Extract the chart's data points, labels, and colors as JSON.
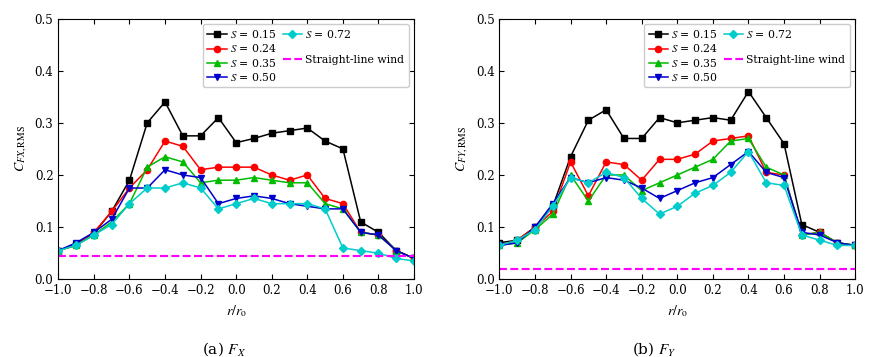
{
  "x": [
    -1.0,
    -0.9,
    -0.8,
    -0.7,
    -0.6,
    -0.5,
    -0.4,
    -0.3,
    -0.2,
    -0.1,
    0.0,
    0.1,
    0.2,
    0.3,
    0.4,
    0.5,
    0.6,
    0.7,
    0.8,
    0.9,
    1.0
  ],
  "fx_s015": [
    0.055,
    0.068,
    0.088,
    0.13,
    0.19,
    0.3,
    0.34,
    0.275,
    0.275,
    0.31,
    0.262,
    0.27,
    0.28,
    0.285,
    0.29,
    0.265,
    0.25,
    0.11,
    0.09,
    0.055,
    0.04
  ],
  "fx_s024": [
    0.055,
    0.065,
    0.09,
    0.13,
    0.175,
    0.21,
    0.265,
    0.255,
    0.21,
    0.215,
    0.215,
    0.215,
    0.2,
    0.19,
    0.2,
    0.155,
    0.145,
    0.09,
    0.085,
    0.055,
    0.04
  ],
  "fx_s035": [
    0.055,
    0.065,
    0.085,
    0.11,
    0.145,
    0.215,
    0.235,
    0.225,
    0.185,
    0.19,
    0.19,
    0.195,
    0.19,
    0.185,
    0.185,
    0.145,
    0.135,
    0.09,
    0.085,
    0.055,
    0.04
  ],
  "fx_s050": [
    0.055,
    0.07,
    0.09,
    0.115,
    0.175,
    0.175,
    0.21,
    0.2,
    0.195,
    0.145,
    0.155,
    0.16,
    0.155,
    0.145,
    0.14,
    0.135,
    0.135,
    0.09,
    0.085,
    0.055,
    0.04
  ],
  "fx_s072": [
    0.055,
    0.065,
    0.085,
    0.105,
    0.145,
    0.175,
    0.175,
    0.185,
    0.175,
    0.135,
    0.145,
    0.155,
    0.145,
    0.145,
    0.145,
    0.135,
    0.06,
    0.055,
    0.05,
    0.04,
    0.035
  ],
  "fx_slw": [
    0.045,
    0.045,
    0.045,
    0.045,
    0.045,
    0.045,
    0.045,
    0.045,
    0.045,
    0.045,
    0.045,
    0.045,
    0.045,
    0.045,
    0.045,
    0.045,
    0.045,
    0.045,
    0.045,
    0.045,
    0.045
  ],
  "fy_s015": [
    0.07,
    0.075,
    0.1,
    0.14,
    0.235,
    0.305,
    0.325,
    0.27,
    0.27,
    0.31,
    0.3,
    0.305,
    0.31,
    0.305,
    0.36,
    0.31,
    0.26,
    0.105,
    0.09,
    0.07,
    0.065
  ],
  "fy_s024": [
    0.065,
    0.075,
    0.1,
    0.13,
    0.225,
    0.16,
    0.225,
    0.22,
    0.19,
    0.23,
    0.23,
    0.24,
    0.265,
    0.27,
    0.275,
    0.205,
    0.2,
    0.085,
    0.09,
    0.07,
    0.065
  ],
  "fy_s035": [
    0.065,
    0.07,
    0.095,
    0.125,
    0.2,
    0.15,
    0.2,
    0.2,
    0.17,
    0.185,
    0.2,
    0.215,
    0.23,
    0.265,
    0.27,
    0.215,
    0.2,
    0.085,
    0.09,
    0.07,
    0.065
  ],
  "fy_s050": [
    0.065,
    0.07,
    0.1,
    0.145,
    0.195,
    0.185,
    0.195,
    0.19,
    0.175,
    0.155,
    0.17,
    0.185,
    0.195,
    0.22,
    0.245,
    0.205,
    0.195,
    0.09,
    0.085,
    0.07,
    0.065
  ],
  "fy_s072": [
    0.065,
    0.075,
    0.095,
    0.14,
    0.195,
    0.185,
    0.205,
    0.195,
    0.155,
    0.125,
    0.14,
    0.165,
    0.18,
    0.205,
    0.245,
    0.185,
    0.18,
    0.085,
    0.075,
    0.065,
    0.065
  ],
  "fy_slw": [
    0.02,
    0.02,
    0.02,
    0.02,
    0.02,
    0.02,
    0.02,
    0.02,
    0.02,
    0.02,
    0.02,
    0.02,
    0.02,
    0.02,
    0.02,
    0.02,
    0.02,
    0.02,
    0.02,
    0.02,
    0.02
  ],
  "color_s015": "#000000",
  "color_s024": "#ff0000",
  "color_s035": "#00bb00",
  "color_s050": "#0000cc",
  "color_s072": "#00cccc",
  "color_slw": "#ff00ff",
  "marker_s015": "s",
  "marker_s024": "o",
  "marker_s035": "^",
  "marker_s050": "v",
  "marker_s072": "D",
  "xlabel": "$r/r_{\\mathrm{o}}$",
  "ylabel_a": "$C_{FX,\\mathrm{RMS}}$",
  "ylabel_b": "$C_{FY,\\mathrm{RMS}}$",
  "title_a": "(a) $F_X$",
  "title_b": "(b) $F_Y$",
  "ylim": [
    0.0,
    0.5
  ],
  "xlim": [
    -1.0,
    1.0
  ],
  "yticks": [
    0.0,
    0.1,
    0.2,
    0.3,
    0.4,
    0.5
  ],
  "xticks": [
    -1.0,
    -0.8,
    -0.6,
    -0.4,
    -0.2,
    0.0,
    0.2,
    0.4,
    0.6,
    0.8,
    1.0
  ],
  "markersize": 4.5,
  "linewidth": 1.1
}
